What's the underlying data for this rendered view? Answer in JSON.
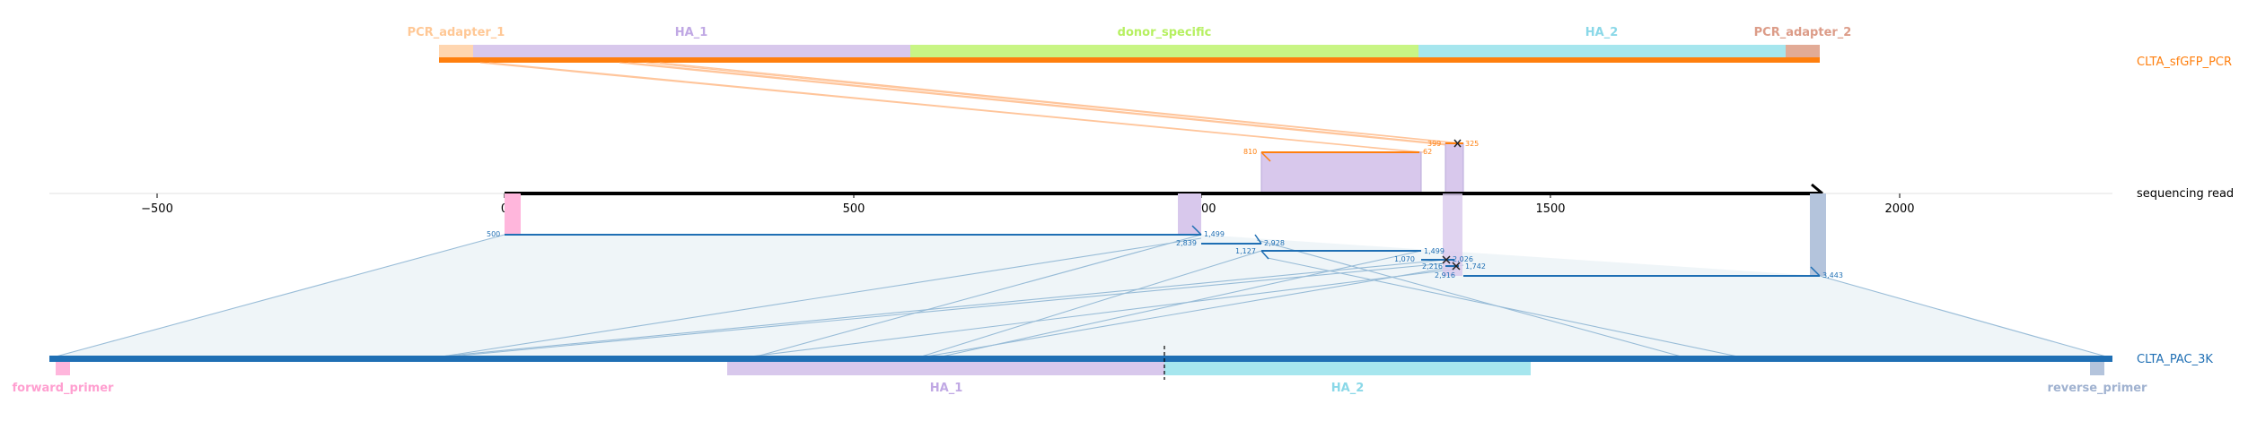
{
  "top_track": {
    "name": "CLTA_sfGFP_PCR",
    "color": "#ff7f0e",
    "features": [
      {
        "label": "PCR_adapter_1",
        "color": "#ffd6b0",
        "label_color": "#ffc896"
      },
      {
        "label": "HA_1",
        "color": "#d8c8ec",
        "label_color": "#c0a8e4"
      },
      {
        "label": "donor_specific",
        "color": "#c8f584",
        "label_color": "#b6f060"
      },
      {
        "label": "HA_2",
        "color": "#a6e6ee",
        "label_color": "#8ad8e8"
      },
      {
        "label": "PCR_adapter_2",
        "color": "#e2ab96",
        "label_color": "#dc9c88"
      }
    ]
  },
  "read": {
    "name": "sequencing read",
    "axis_ticks": [
      "−500",
      "0",
      "500",
      "1000",
      "1500",
      "2000"
    ]
  },
  "bottom_track": {
    "name": "CLTA_PAC_3K",
    "color": "#1f6fb4",
    "features": [
      {
        "label": "forward_primer",
        "color": "#ffb6dc",
        "label_color": "#ff9fd0"
      },
      {
        "label": "HA_1",
        "color": "#d8c8ec",
        "label_color": "#c0a8e4"
      },
      {
        "label": "HA_2",
        "color": "#a6e6ee",
        "label_color": "#8ad8e8"
      },
      {
        "label": "reverse_primer",
        "color": "#b4c4dc",
        "label_color": "#a0b2d0"
      }
    ]
  },
  "alignments_top": {
    "color": "#ff7f0e",
    "labels": [
      "810",
      "62",
      "399",
      "325"
    ]
  },
  "alignments_bottom": {
    "color": "#1f6fb4",
    "labels": [
      "500",
      "1,499",
      "2,839",
      "2,928",
      "1,127",
      "1,499",
      "1,070",
      "2,026",
      "2,216",
      "1,742",
      "2,916",
      "3,443"
    ]
  }
}
